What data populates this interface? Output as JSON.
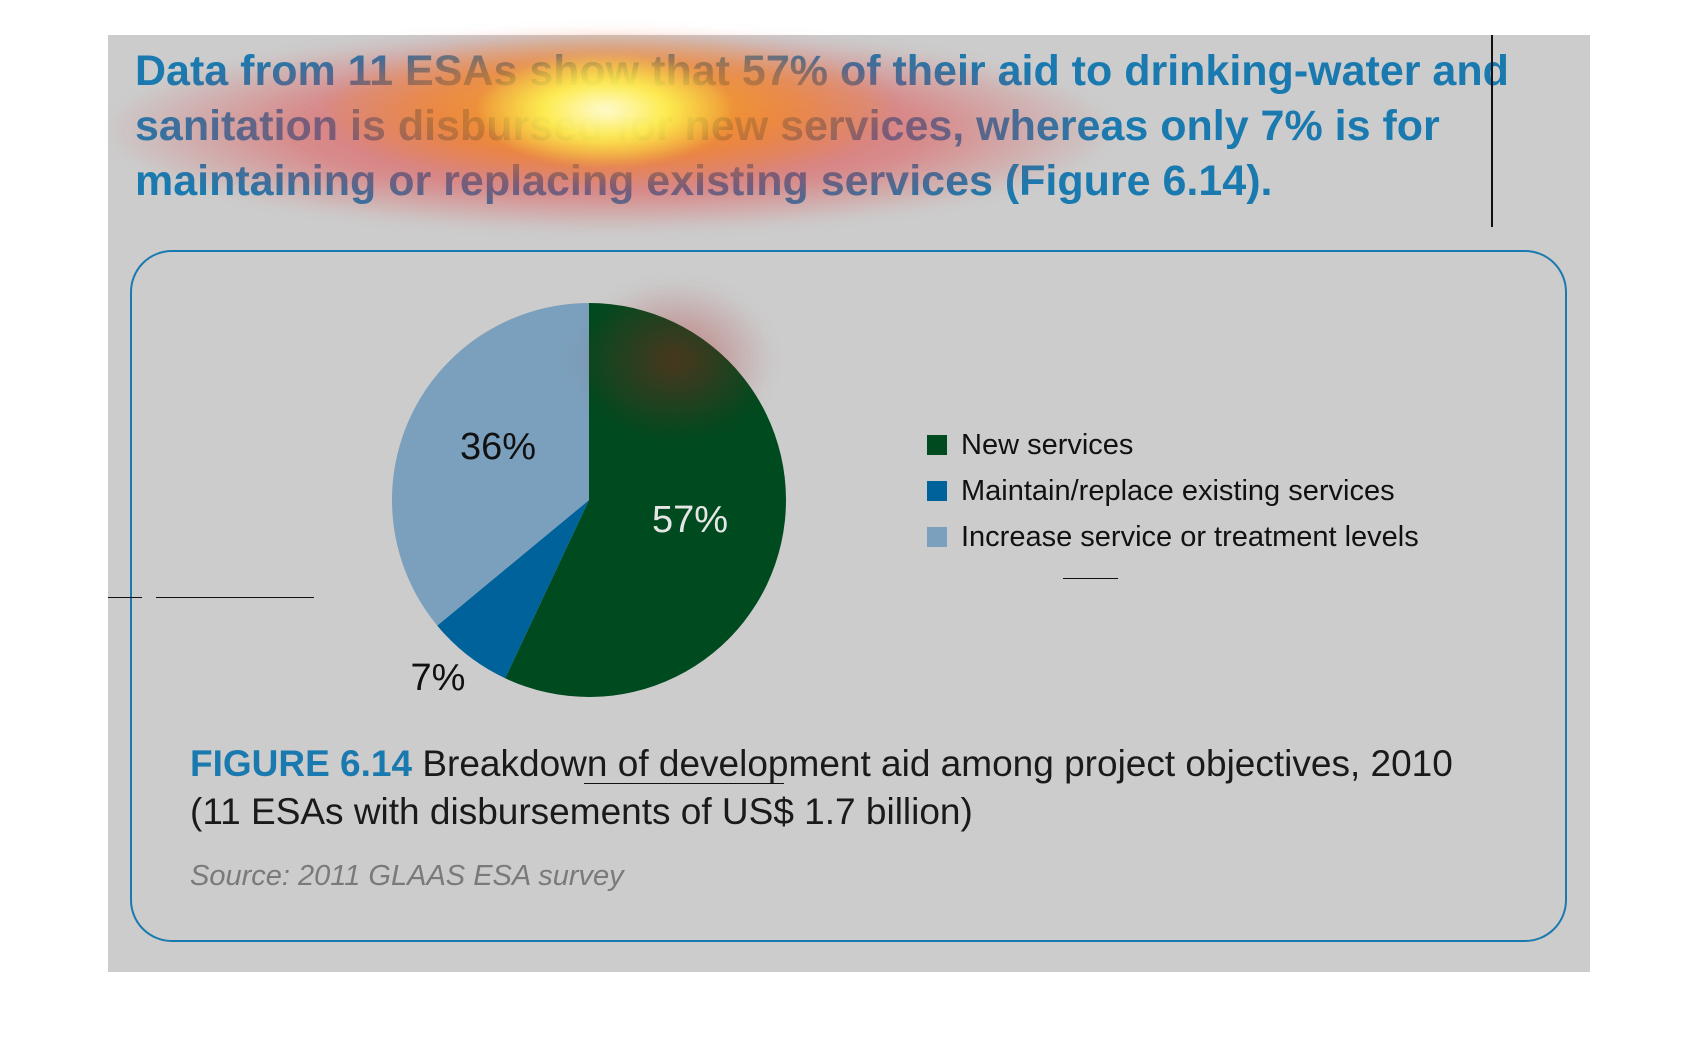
{
  "headline": "Data from 11 ESAs show that 57% of their aid to drinking-water and sanitation is disbursed for new services, whereas only 7% is for maintaining or replacing existing services (Figure 6.14).",
  "figure": {
    "number": "FIGURE 6.14",
    "caption": "Breakdown of development aid among project objectives, 2010 (11 ESAs with disbursements of US$ 1.7 billion)",
    "source": "Source: 2011 GLAAS ESA survey"
  },
  "chart_data": {
    "type": "pie",
    "categories": [
      "New services",
      "Maintain/replace existing services",
      "Increase service or treatment levels"
    ],
    "values": [
      57,
      7,
      36
    ],
    "labels": [
      "57%",
      "7%",
      "36%"
    ],
    "colors": [
      "#004a1f",
      "#00629b",
      "#7ba0bd"
    ],
    "legend_position": "right"
  },
  "overlay": {
    "type": "attention-heatmap",
    "colors": [
      "#e63232",
      "#ff9600",
      "#ffff5a"
    ]
  }
}
